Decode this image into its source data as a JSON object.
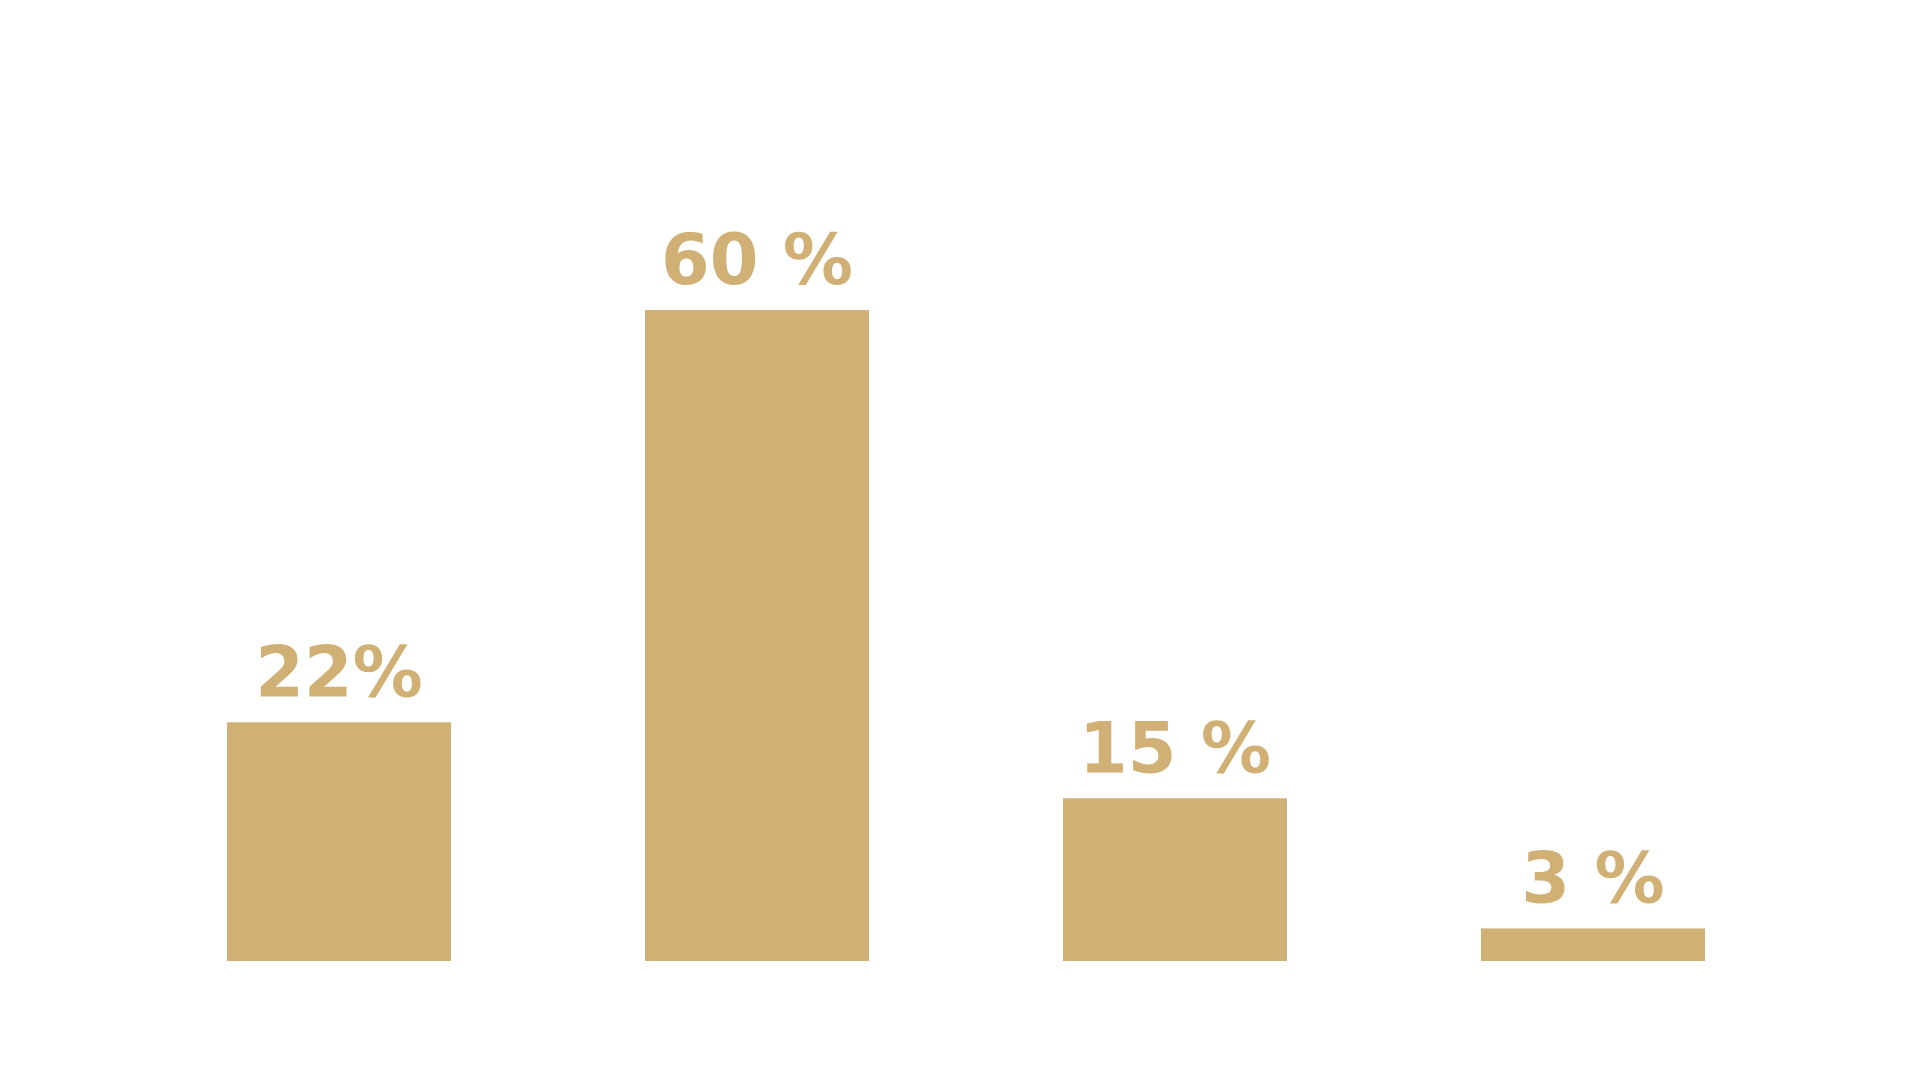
{
  "colors": {
    "bar": "#D0B074",
    "label": "#D0B074",
    "background": "#FFFFFF"
  },
  "chart_data": {
    "type": "bar",
    "categories": [
      "",
      "",
      "",
      ""
    ],
    "values": [
      22,
      60,
      15,
      3
    ],
    "data_labels": [
      "22%",
      "60 %",
      "15 %",
      "3 %"
    ],
    "title": "",
    "xlabel": "",
    "ylabel": "",
    "grid": false,
    "legend": "none"
  }
}
